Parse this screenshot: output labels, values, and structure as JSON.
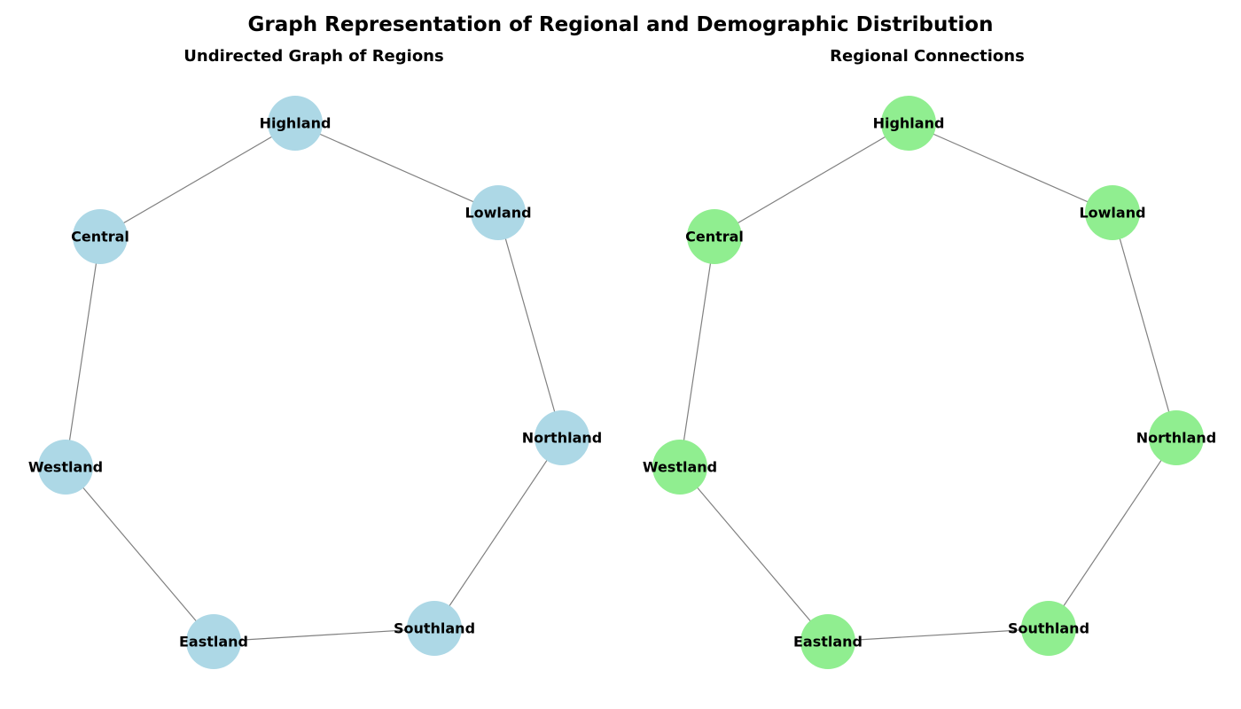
{
  "title": "Graph Representation of Regional and Demographic Distribution",
  "chart_data": [
    {
      "type": "network",
      "title": "Undirected Graph of Regions",
      "node_color": "#add8e6",
      "edge_color": "#808080",
      "nodes": [
        "Highland",
        "Lowland",
        "Northland",
        "Southland",
        "Eastland",
        "Westland",
        "Central"
      ],
      "edges": [
        [
          "Highland",
          "Lowland"
        ],
        [
          "Lowland",
          "Northland"
        ],
        [
          "Northland",
          "Southland"
        ],
        [
          "Southland",
          "Eastland"
        ],
        [
          "Eastland",
          "Westland"
        ],
        [
          "Westland",
          "Central"
        ],
        [
          "Central",
          "Highland"
        ]
      ]
    },
    {
      "type": "network",
      "title": "Regional Connections",
      "node_color": "#90ee90",
      "edge_color": "#808080",
      "nodes": [
        "Highland",
        "Lowland",
        "Northland",
        "Southland",
        "Eastland",
        "Westland",
        "Central"
      ],
      "edges": [
        [
          "Highland",
          "Lowland"
        ],
        [
          "Lowland",
          "Northland"
        ],
        [
          "Northland",
          "Southland"
        ],
        [
          "Southland",
          "Eastland"
        ],
        [
          "Eastland",
          "Westland"
        ],
        [
          "Westland",
          "Central"
        ],
        [
          "Central",
          "Highland"
        ]
      ]
    }
  ]
}
